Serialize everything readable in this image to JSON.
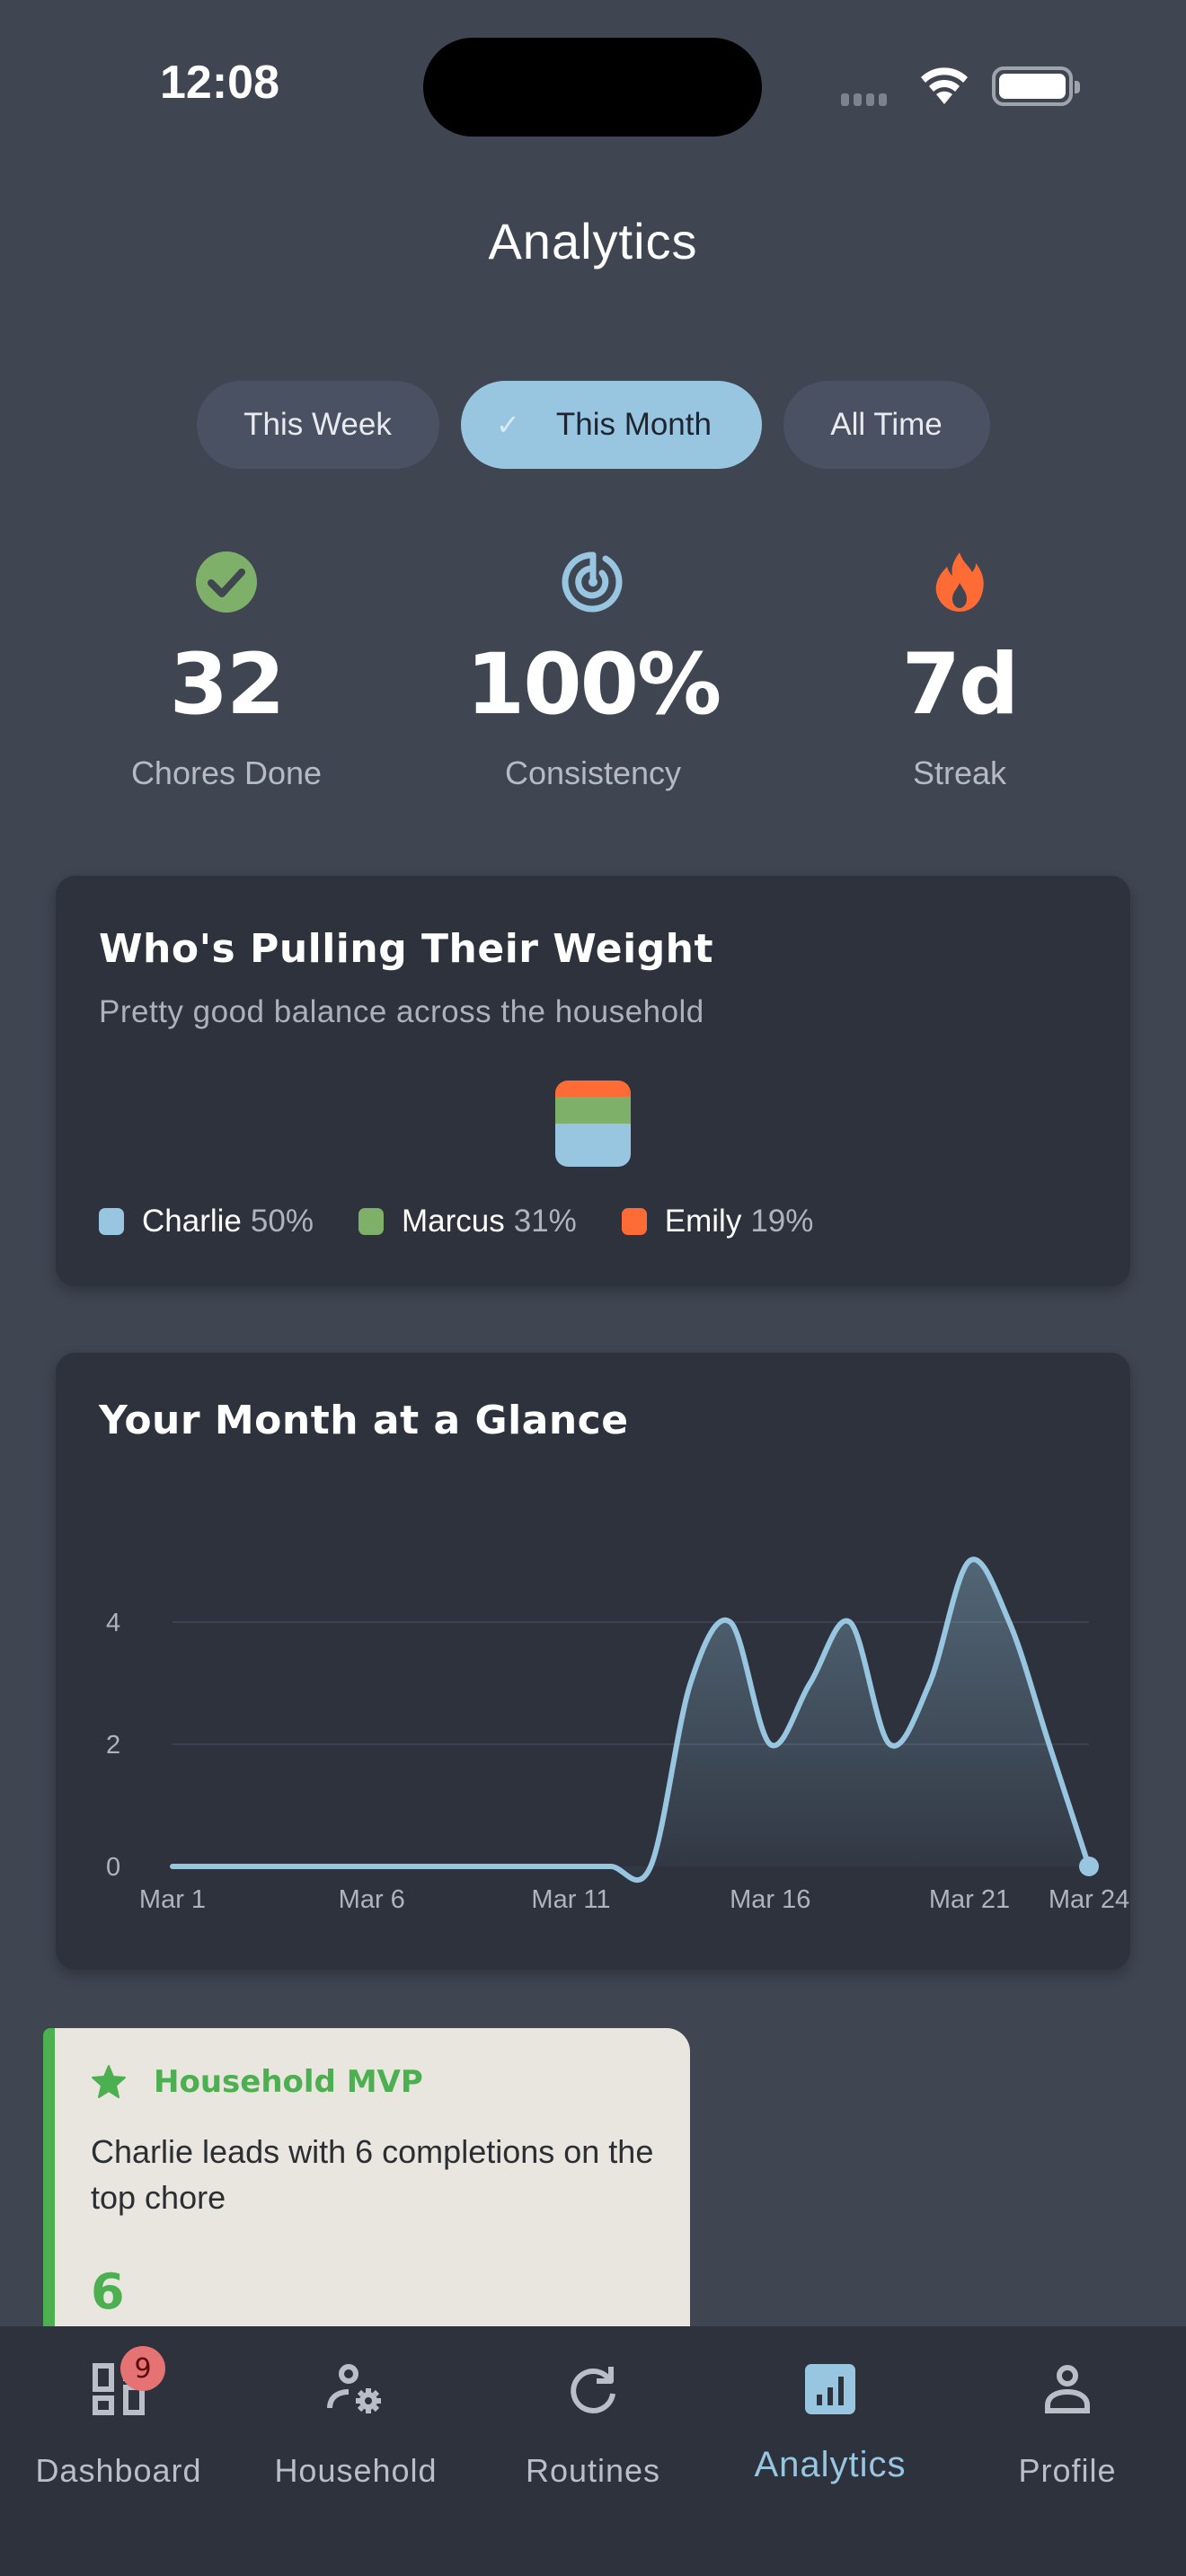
{
  "status_bar": {
    "time": "12:08"
  },
  "header": {
    "title": "Analytics"
  },
  "filters": [
    {
      "label": "This Week",
      "selected": false
    },
    {
      "label": "This Month",
      "selected": true,
      "check_glyph": "✓"
    },
    {
      "label": "All Time",
      "selected": false
    }
  ],
  "stats": [
    {
      "icon": "check-circle-icon",
      "value": "32",
      "label": "Chores Done",
      "color": "#7fb069"
    },
    {
      "icon": "target-icon",
      "value": "100%",
      "label": "Consistency",
      "color": "#98c6e0"
    },
    {
      "icon": "flame-icon",
      "value": "7d",
      "label": "Streak",
      "color": "#ff6b35"
    }
  ],
  "balance_card": {
    "title": "Who's Pulling Their Weight",
    "subtitle": "Pretty good balance across the household",
    "members": [
      {
        "name": "Charlie",
        "pct": "50%",
        "value": 50,
        "color": "#98c6e0"
      },
      {
        "name": "Marcus",
        "pct": "31%",
        "value": 31,
        "color": "#7fb069"
      },
      {
        "name": "Emily",
        "pct": "19%",
        "value": 19,
        "color": "#ff6b35"
      }
    ]
  },
  "month_card": {
    "title": "Your Month at a Glance",
    "y_ticks": [
      "4",
      "2",
      "0"
    ],
    "x_ticks": [
      "Mar 1",
      "Mar 6",
      "Mar 11",
      "Mar 16",
      "Mar 21",
      "Mar 24"
    ]
  },
  "chart_data": [
    {
      "type": "bar",
      "title": "Who's Pulling Their Weight",
      "categories": [
        "Charlie",
        "Marcus",
        "Emily"
      ],
      "values": [
        50,
        31,
        19
      ],
      "unit": "%",
      "stacked": true,
      "legend_position": "bottom"
    },
    {
      "type": "area",
      "title": "Your Month at a Glance",
      "x": [
        "Mar 1",
        "Mar 2",
        "Mar 3",
        "Mar 4",
        "Mar 5",
        "Mar 6",
        "Mar 7",
        "Mar 8",
        "Mar 9",
        "Mar 10",
        "Mar 11",
        "Mar 12",
        "Mar 13",
        "Mar 14",
        "Mar 15",
        "Mar 16",
        "Mar 17",
        "Mar 18",
        "Mar 19",
        "Mar 20",
        "Mar 21",
        "Mar 22",
        "Mar 23",
        "Mar 24"
      ],
      "values": [
        0,
        0,
        0,
        0,
        0,
        0,
        0,
        0,
        0,
        0,
        0,
        0,
        0,
        3,
        4,
        2,
        3,
        4,
        2,
        3,
        5,
        4,
        2,
        0
      ],
      "xticks": [
        "Mar 1",
        "Mar 6",
        "Mar 11",
        "Mar 16",
        "Mar 21",
        "Mar 24"
      ],
      "yticks": [
        0,
        2,
        4
      ],
      "ylim": [
        0,
        5.5
      ],
      "grid": true,
      "xlabel": "",
      "ylabel": ""
    }
  ],
  "mvp_card": {
    "title": "Household MVP",
    "text": "Charlie leads with 6 completions on the top chore",
    "value": "6"
  },
  "nav": {
    "items": [
      {
        "label": "Dashboard",
        "icon": "dashboard-icon",
        "badge": "9",
        "active": false
      },
      {
        "label": "Household",
        "icon": "household-settings-icon",
        "active": false
      },
      {
        "label": "Routines",
        "icon": "refresh-icon",
        "active": false
      },
      {
        "label": "Analytics",
        "icon": "analytics-icon",
        "active": true
      },
      {
        "label": "Profile",
        "icon": "profile-icon",
        "active": false
      }
    ]
  }
}
